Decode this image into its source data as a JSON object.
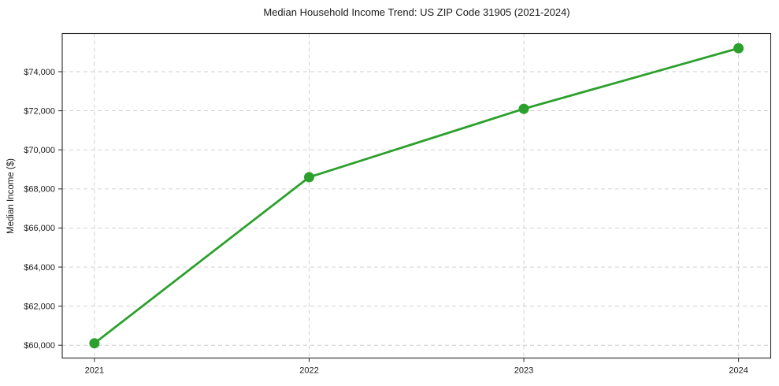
{
  "chart_data": {
    "type": "line",
    "title": "Median Household Income Trend: US ZIP Code 31905 (2021-2024)",
    "xlabel": "",
    "ylabel": "Median Income ($)",
    "x": [
      2021,
      2022,
      2023,
      2024
    ],
    "x_tick_labels": [
      "2021",
      "2022",
      "2023",
      "2024"
    ],
    "series": [
      {
        "name": "Median Household Income",
        "values": [
          60100,
          68600,
          72100,
          75200
        ]
      }
    ],
    "y_ticks": [
      60000,
      62000,
      64000,
      66000,
      68000,
      70000,
      72000,
      74000
    ],
    "y_tick_labels": [
      "$60,000",
      "$62,000",
      "$64,000",
      "$66,000",
      "$68,000",
      "$70,000",
      "$72,000",
      "$74,000"
    ],
    "xlim": [
      2020.85,
      2024.15
    ],
    "ylim": [
      59345,
      75955
    ],
    "grid": "on",
    "grid_style": "dashed",
    "legend_position": "none",
    "colors": {
      "line": "#2ca02c",
      "marker": "#2ca02c",
      "grid": "#cccccc",
      "axis": "#262626",
      "text": "#1a1a1a",
      "background": "#ffffff"
    }
  }
}
